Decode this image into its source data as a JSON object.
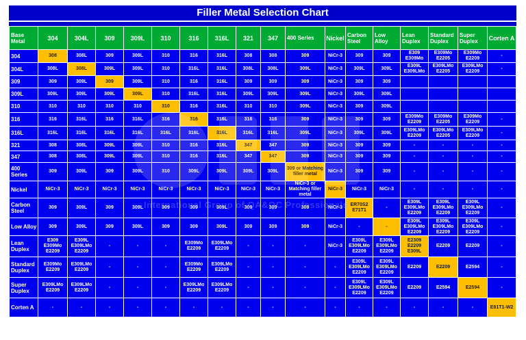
{
  "title": "Filler Metal Selection Chart",
  "watermark_text": "International Group of QA&QC Professionals",
  "colors": {
    "header_green": "#00aa33",
    "cell_blue": "#0000ee",
    "highlight": "#ffbf00"
  },
  "corner_label": "Base Metal",
  "columns": [
    "304",
    "304L",
    "309",
    "309L",
    "310",
    "316",
    "316L",
    "321",
    "347",
    "400 Series",
    "Nickel",
    "Carbon Steel",
    "Low Alloy",
    "Lean Duplex",
    "Standard Duplex",
    "Super Duplex",
    "Corten A"
  ],
  "rows": [
    {
      "label": "304",
      "cells": [
        "308",
        "308L",
        "309",
        "309L",
        "310",
        "316",
        "316L",
        "308",
        "308",
        "309",
        "NiCr-3",
        "309",
        "309",
        "E309 E309Mo",
        "E309Mo E2205",
        "E309Mo E2209",
        "-"
      ]
    },
    {
      "label": "304L",
      "cells": [
        "308L",
        "308L",
        "309L",
        "309L",
        "310",
        "316L",
        "316L",
        "308L",
        "308L",
        "309L",
        "NiCr-3",
        "309L",
        "309L",
        "E309L E309LMo",
        "E309LMo E2205",
        "E309LMo E2209",
        "-"
      ]
    },
    {
      "label": "309",
      "cells": [
        "309",
        "309L",
        "309",
        "309L",
        "310",
        "316",
        "316L",
        "309",
        "309",
        "309",
        "NiCr-3",
        "309",
        "309",
        "",
        "",
        "",
        ""
      ]
    },
    {
      "label": "309L",
      "cells": [
        "309L",
        "309L",
        "309L",
        "309L",
        "310",
        "316L",
        "316L",
        "309L",
        "309L",
        "309L",
        "NiCr-3",
        "309L",
        "309L",
        "",
        "",
        "",
        ""
      ]
    },
    {
      "label": "310",
      "cells": [
        "310",
        "310",
        "310",
        "310",
        "310",
        "316",
        "316L",
        "310",
        "310",
        "309L",
        "NiCr-3",
        "309",
        "309L",
        "",
        "",
        "",
        ""
      ]
    },
    {
      "label": "316",
      "cells": [
        "316",
        "316L",
        "316",
        "316L",
        "316",
        "316",
        "316L",
        "316",
        "316",
        "309",
        "NiCr-3",
        "309",
        "309",
        "E309Mo E2209",
        "E309Mo E2205",
        "E309Mo E2209",
        "-"
      ]
    },
    {
      "label": "316L",
      "cells": [
        "316L",
        "316L",
        "316L",
        "316L",
        "316L",
        "316L",
        "316L",
        "316L",
        "316L",
        "309L",
        "NiCr-3",
        "309L",
        "309L",
        "E309LMo E2209",
        "E309LMo E2205",
        "E309LMo E2209",
        "-"
      ]
    },
    {
      "label": "321",
      "cells": [
        "308",
        "308L",
        "309L",
        "309L",
        "310",
        "316",
        "316L",
        "347",
        "347",
        "309",
        "NiCr-3",
        "309",
        "309",
        "-",
        "-",
        "-",
        "-"
      ]
    },
    {
      "label": "347",
      "cells": [
        "308",
        "308L",
        "309L",
        "309L",
        "310",
        "316",
        "316L",
        "347",
        "347",
        "309",
        "NiCr-3",
        "309",
        "309",
        "-",
        "-",
        "-",
        "-"
      ]
    },
    {
      "label": "400 Series",
      "cells": [
        "309",
        "309L",
        "309",
        "309L",
        "310",
        "309L",
        "309L",
        "309L",
        "309L",
        "309 or Matching filler metal",
        "NiCr-3",
        "309",
        "309",
        "-",
        "-",
        "-",
        "-"
      ]
    },
    {
      "label": "Nickel",
      "cells": [
        "NiCr-3",
        "NiCr-3",
        "NiCr-3",
        "NiCr-3",
        "NiCr-3",
        "NiCr-3",
        "NiCr-3",
        "NiCr-3",
        "NiCr-3",
        "NiCr-3 or Matching filler metal",
        "NiCr-3",
        "NiCr-3",
        "NiCr-3",
        "-",
        "-",
        "-",
        "-"
      ]
    },
    {
      "label": "Carbon Steel",
      "cells": [
        "309",
        "309L",
        "309",
        "309L",
        "309",
        "309",
        "309L",
        "309",
        "309",
        "309",
        "NiCr-3",
        "ER70S2 E71T1",
        "-",
        "E309L E309LMo E2209",
        "E309L E309LMo E2209",
        "E309L E309LMo E2209",
        "-"
      ]
    },
    {
      "label": "Low Alloy",
      "cells": [
        "309",
        "309L",
        "309",
        "309L",
        "309",
        "309",
        "309L",
        "309",
        "309",
        "309",
        "NiCr-3",
        "-",
        "-",
        "E309L E309LMo E2209",
        "E309L E309LMo E2209",
        "E309L E309LMo E2209",
        "-"
      ]
    },
    {
      "label": "Lean Duplex",
      "cells": [
        "E309 E309Mo E2209",
        "E309L E309LMo E2209",
        "-",
        "-",
        "-",
        "E309Mo E2209",
        "E309LMo E2209",
        "-",
        "-",
        "-",
        "NiCr-3",
        "E309L E309LMo E2209",
        "E309L E309LMo E2209",
        "E2309 E2209 E309L",
        "E2209",
        "E2209",
        "-"
      ]
    },
    {
      "label": "Standard Duplex",
      "cells": [
        "E309Mo E2209",
        "E309LMo E2209",
        "-",
        "-",
        "-",
        "E309Mo E2209",
        "E309LMo E2209",
        "-",
        "-",
        "-",
        "-",
        "E309L E309LMo E2209",
        "E309L E309LMo E2209",
        "E2209",
        "E2209",
        "E2594",
        "-"
      ]
    },
    {
      "label": "Super Duplex",
      "cells": [
        "E309LMo E2209",
        "E309LMo E2209",
        "-",
        "-",
        "-",
        "E309LMo E2209",
        "E309LMo E2209",
        "-",
        "-",
        "-",
        "-",
        "E309L E309LMo E2209",
        "E309L E309LMo E2209",
        "E2209",
        "E2594",
        "E2594",
        "-"
      ]
    },
    {
      "label": "Corten A",
      "cells": [
        "-",
        "-",
        "-",
        "-",
        "-",
        "-",
        "-",
        "-",
        "-",
        "-",
        "-",
        "-",
        "-",
        "-",
        "-",
        "-",
        "E81T1-W2"
      ]
    }
  ],
  "highlights": [
    [
      0,
      0
    ],
    [
      1,
      1
    ],
    [
      2,
      2
    ],
    [
      3,
      3
    ],
    [
      4,
      4
    ],
    [
      5,
      5
    ],
    [
      6,
      6
    ],
    [
      7,
      7
    ],
    [
      8,
      8
    ],
    [
      9,
      9
    ],
    [
      10,
      10
    ],
    [
      11,
      11
    ],
    [
      12,
      12
    ],
    [
      13,
      13
    ],
    [
      14,
      14
    ],
    [
      15,
      15
    ],
    [
      16,
      16
    ]
  ]
}
